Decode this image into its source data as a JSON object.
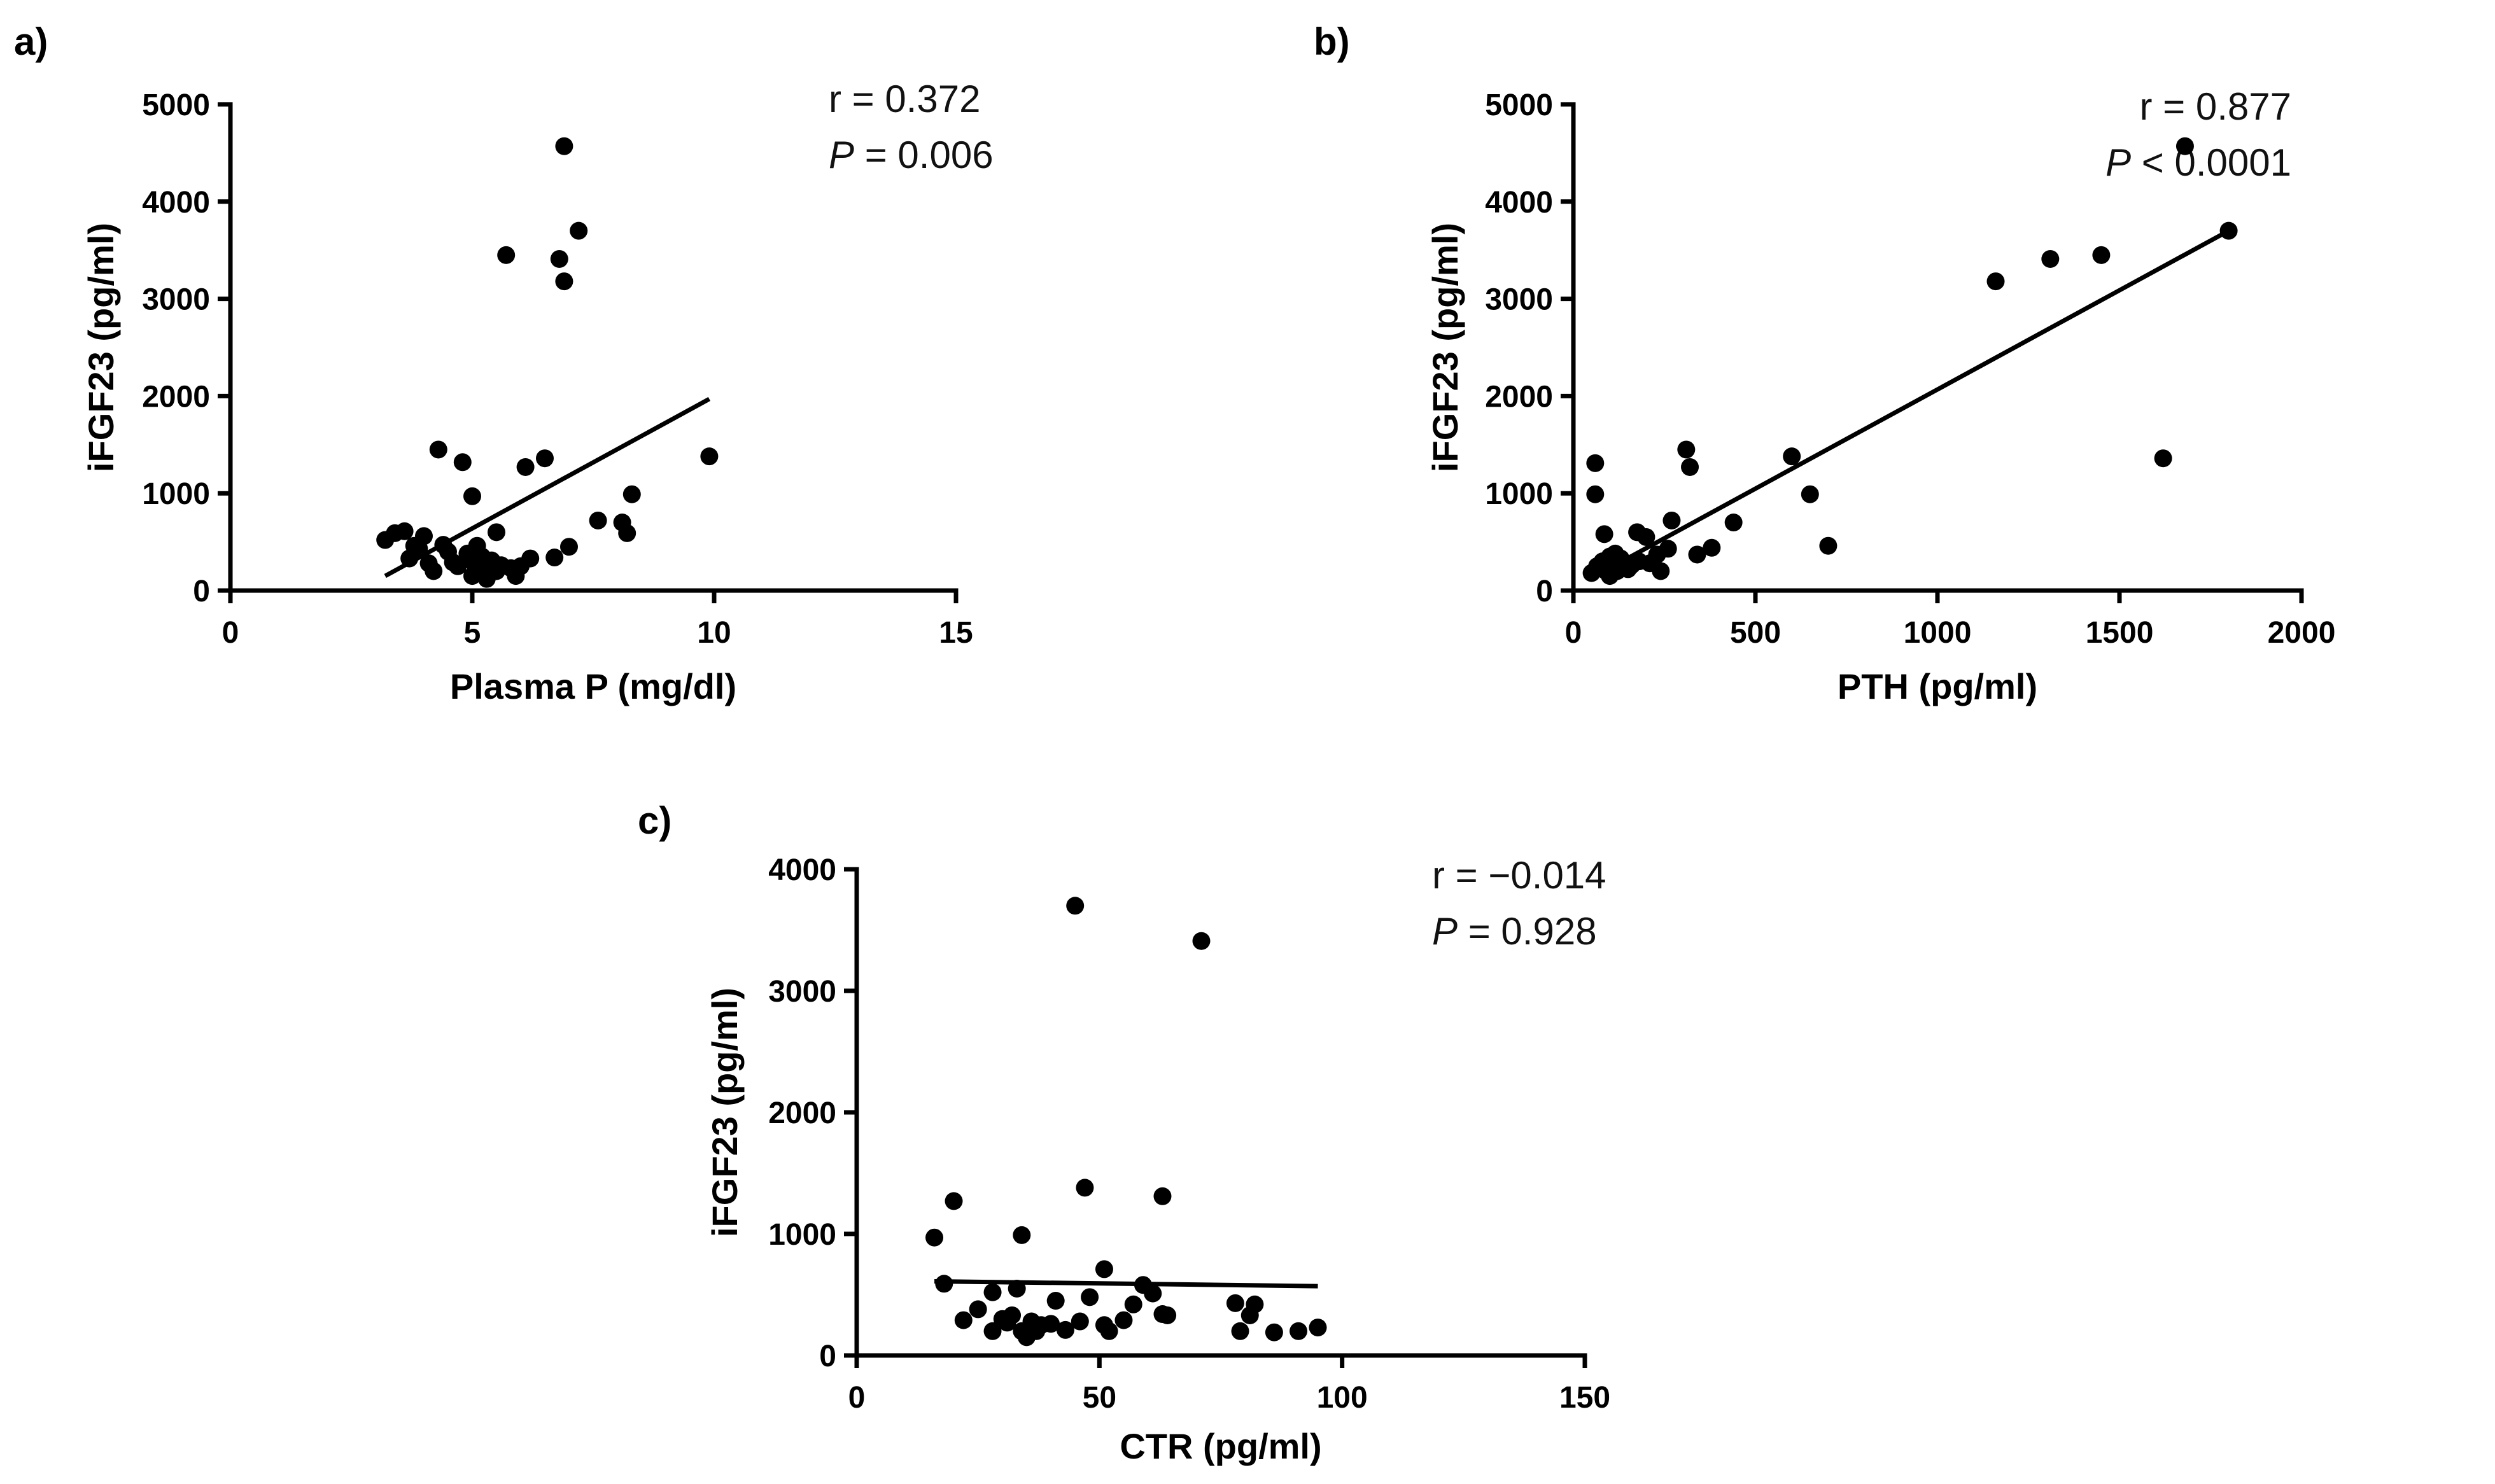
{
  "chart_data": [
    {
      "type": "scatter",
      "panel_label": "a)",
      "xlabel": "Plasma P (mg/dl)",
      "ylabel": "iFGF23 (pg/ml)",
      "xlim": [
        0,
        15
      ],
      "ylim": [
        0,
        5000
      ],
      "xticks": [
        0,
        5,
        10,
        15
      ],
      "yticks": [
        0,
        1000,
        2000,
        3000,
        4000,
        5000
      ],
      "stat_r_label": "r = 0.372",
      "stat_p_symbol": "P",
      "stat_p_rest": " = 0.006",
      "fit_line": [
        [
          3.2,
          150
        ],
        [
          9.9,
          1970
        ]
      ],
      "points": [
        [
          3.2,
          520
        ],
        [
          3.4,
          590
        ],
        [
          3.6,
          610
        ],
        [
          3.7,
          330
        ],
        [
          3.8,
          460
        ],
        [
          3.9,
          430
        ],
        [
          4.0,
          560
        ],
        [
          4.1,
          280
        ],
        [
          4.2,
          200
        ],
        [
          4.3,
          1450
        ],
        [
          4.4,
          470
        ],
        [
          4.5,
          400
        ],
        [
          4.6,
          290
        ],
        [
          4.7,
          250
        ],
        [
          4.8,
          1320
        ],
        [
          4.9,
          380
        ],
        [
          5.0,
          300
        ],
        [
          5.0,
          970
        ],
        [
          5.0,
          150
        ],
        [
          5.1,
          220
        ],
        [
          5.1,
          460
        ],
        [
          5.2,
          180
        ],
        [
          5.2,
          350
        ],
        [
          5.3,
          250
        ],
        [
          5.3,
          120
        ],
        [
          5.4,
          310
        ],
        [
          5.5,
          600
        ],
        [
          5.5,
          200
        ],
        [
          5.6,
          260
        ],
        [
          5.7,
          3450
        ],
        [
          5.8,
          230
        ],
        [
          5.9,
          150
        ],
        [
          6.0,
          250
        ],
        [
          6.1,
          1270
        ],
        [
          6.2,
          330
        ],
        [
          6.5,
          1360
        ],
        [
          6.7,
          340
        ],
        [
          6.8,
          3410
        ],
        [
          6.9,
          4570
        ],
        [
          6.9,
          3180
        ],
        [
          7.0,
          450
        ],
        [
          7.2,
          3700
        ],
        [
          7.6,
          720
        ],
        [
          8.1,
          700
        ],
        [
          8.2,
          590
        ],
        [
          8.3,
          990
        ],
        [
          9.9,
          1380
        ]
      ]
    },
    {
      "type": "scatter",
      "panel_label": "b)",
      "xlabel": "PTH (pg/ml)",
      "ylabel": "iFGF23 (pg/ml)",
      "xlim": [
        0,
        2000
      ],
      "ylim": [
        0,
        5000
      ],
      "xticks": [
        0,
        500,
        1000,
        1500,
        2000
      ],
      "yticks": [
        0,
        1000,
        2000,
        3000,
        4000,
        5000
      ],
      "stat_r_label": "r = 0.877",
      "stat_p_symbol": "P",
      "stat_p_rest": " < 0.0001",
      "fit_line": [
        [
          60,
          150
        ],
        [
          1800,
          3700
        ]
      ],
      "points": [
        [
          50,
          180
        ],
        [
          60,
          1310
        ],
        [
          60,
          990
        ],
        [
          65,
          250
        ],
        [
          80,
          300
        ],
        [
          85,
          580
        ],
        [
          90,
          200
        ],
        [
          100,
          150
        ],
        [
          100,
          350
        ],
        [
          110,
          250
        ],
        [
          115,
          380
        ],
        [
          120,
          200
        ],
        [
          130,
          330
        ],
        [
          150,
          220
        ],
        [
          160,
          260
        ],
        [
          175,
          600
        ],
        [
          180,
          300
        ],
        [
          200,
          550
        ],
        [
          210,
          280
        ],
        [
          230,
          370
        ],
        [
          240,
          200
        ],
        [
          260,
          430
        ],
        [
          270,
          720
        ],
        [
          310,
          1450
        ],
        [
          320,
          1270
        ],
        [
          340,
          370
        ],
        [
          380,
          440
        ],
        [
          440,
          700
        ],
        [
          600,
          1380
        ],
        [
          650,
          990
        ],
        [
          700,
          460
        ],
        [
          1160,
          3180
        ],
        [
          1310,
          3410
        ],
        [
          1450,
          3450
        ],
        [
          1620,
          1360
        ],
        [
          1680,
          4570
        ],
        [
          1800,
          3700
        ]
      ]
    },
    {
      "type": "scatter",
      "panel_label": "c)",
      "xlabel": "CTR (pg/ml)",
      "ylabel": "iFGF23 (pg/ml)",
      "xlim": [
        0,
        150
      ],
      "ylim": [
        0,
        4000
      ],
      "xticks": [
        0,
        50,
        100,
        150
      ],
      "yticks": [
        0,
        1000,
        2000,
        3000,
        4000
      ],
      "stat_r_label": "r = −0.014",
      "stat_p_symbol": "P",
      "stat_p_rest": " = 0.928",
      "fit_line": [
        [
          16,
          610
        ],
        [
          95,
          570
        ]
      ],
      "points": [
        [
          16,
          970
        ],
        [
          18,
          590
        ],
        [
          20,
          1270
        ],
        [
          22,
          290
        ],
        [
          25,
          380
        ],
        [
          28,
          200
        ],
        [
          28,
          520
        ],
        [
          30,
          300
        ],
        [
          31,
          270
        ],
        [
          32,
          330
        ],
        [
          33,
          550
        ],
        [
          34,
          990
        ],
        [
          34,
          200
        ],
        [
          35,
          150
        ],
        [
          36,
          280
        ],
        [
          37,
          200
        ],
        [
          38,
          250
        ],
        [
          40,
          260
        ],
        [
          41,
          450
        ],
        [
          43,
          210
        ],
        [
          45,
          3700
        ],
        [
          46,
          280
        ],
        [
          47,
          1380
        ],
        [
          48,
          480
        ],
        [
          51,
          250
        ],
        [
          51,
          710
        ],
        [
          52,
          200
        ],
        [
          55,
          290
        ],
        [
          57,
          420
        ],
        [
          59,
          580
        ],
        [
          61,
          510
        ],
        [
          63,
          1310
        ],
        [
          63,
          340
        ],
        [
          64,
          330
        ],
        [
          71,
          3410
        ],
        [
          78,
          430
        ],
        [
          79,
          200
        ],
        [
          81,
          330
        ],
        [
          82,
          420
        ],
        [
          86,
          190
        ],
        [
          91,
          200
        ],
        [
          95,
          230
        ]
      ]
    }
  ]
}
